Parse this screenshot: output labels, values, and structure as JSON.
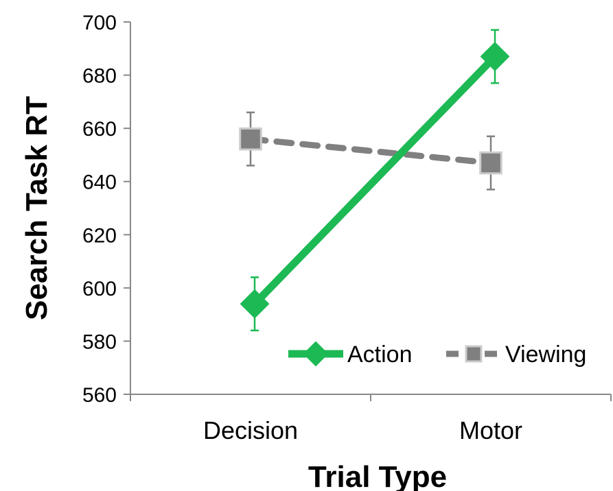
{
  "chart_data": {
    "type": "line",
    "categories": [
      "Decision",
      "Motor"
    ],
    "xlabel": "Trial Type",
    "ylabel": "Search Task RT",
    "ylim": [
      560,
      700
    ],
    "yticks": [
      560,
      580,
      600,
      620,
      640,
      660,
      680,
      700
    ],
    "grid": false,
    "legend_position": "bottom-right",
    "series": [
      {
        "name": "Action",
        "values": [
          594,
          687
        ],
        "error": [
          10,
          10
        ],
        "color": "#1db954",
        "marker": "diamond",
        "line_style": "solid"
      },
      {
        "name": "Viewing",
        "values": [
          656,
          647
        ],
        "error": [
          10,
          10
        ],
        "color": "#808080",
        "marker": "square",
        "line_style": "dashed"
      }
    ]
  }
}
